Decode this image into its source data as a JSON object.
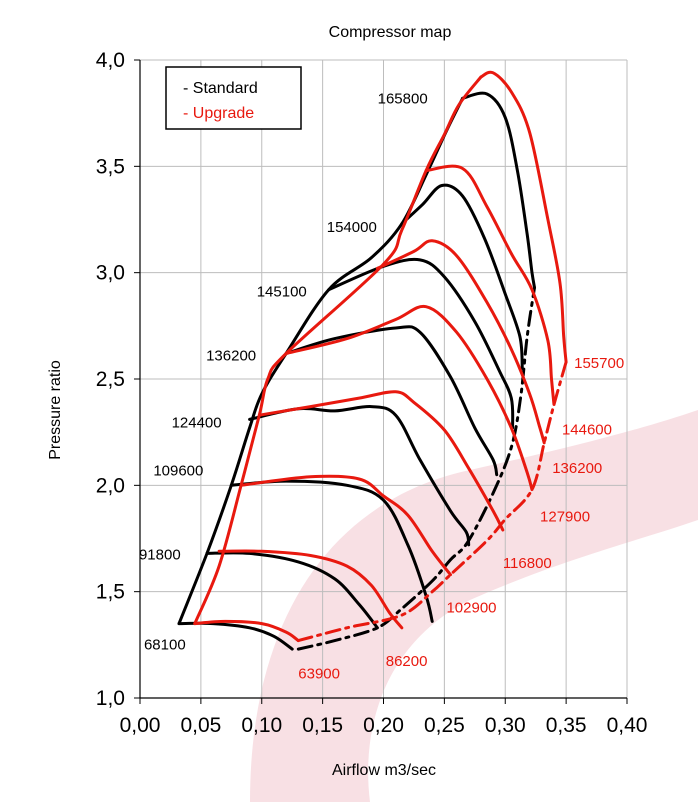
{
  "chart_data": {
    "type": "line",
    "title": "Compressor map",
    "xlabel": "Airflow m3/sec",
    "ylabel": "Pressure ratio",
    "xlim": [
      0,
      0.4
    ],
    "ylim": [
      1.0,
      4.0
    ],
    "x_ticks": [
      "0,00",
      "0,05",
      "0,10",
      "0,15",
      "0,20",
      "0,25",
      "0,30",
      "0,35",
      "0,40"
    ],
    "y_ticks": [
      "1,0",
      "1,5",
      "2,0",
      "2,5",
      "3,0",
      "3,5",
      "4,0"
    ],
    "grid": true,
    "legend": {
      "position": "top-left",
      "entries": [
        {
          "label": "- Standard",
          "color": "#000000"
        },
        {
          "label": "- Upgrade",
          "color": "#e8190f"
        }
      ]
    },
    "colors": {
      "standard": "#000000",
      "upgrade": "#e8190f",
      "grid": "#bdbdbd"
    },
    "series": [
      {
        "name": "Standard",
        "color": "#000000",
        "surge_line": [
          [
            0.032,
            1.35
          ],
          [
            0.055,
            1.68
          ],
          [
            0.075,
            2.0
          ],
          [
            0.09,
            2.27
          ],
          [
            0.1,
            2.43
          ],
          [
            0.12,
            2.62
          ],
          [
            0.155,
            2.92
          ],
          [
            0.19,
            3.07
          ],
          [
            0.215,
            3.23
          ],
          [
            0.235,
            3.46
          ],
          [
            0.252,
            3.67
          ],
          [
            0.265,
            3.82
          ]
        ],
        "speed_lines": [
          {
            "rpm": "68100",
            "points": [
              [
                0.032,
                1.35
              ],
              [
                0.06,
                1.35
              ],
              [
                0.09,
                1.33
              ],
              [
                0.11,
                1.29
              ],
              [
                0.125,
                1.23
              ]
            ]
          },
          {
            "rpm": "91800",
            "points": [
              [
                0.055,
                1.68
              ],
              [
                0.09,
                1.68
              ],
              [
                0.13,
                1.64
              ],
              [
                0.16,
                1.56
              ],
              [
                0.18,
                1.44
              ],
              [
                0.195,
                1.33
              ]
            ]
          },
          {
            "rpm": "109600",
            "points": [
              [
                0.075,
                2.0
              ],
              [
                0.12,
                2.02
              ],
              [
                0.17,
                2.0
              ],
              [
                0.2,
                1.93
              ],
              [
                0.22,
                1.72
              ],
              [
                0.235,
                1.48
              ],
              [
                0.24,
                1.36
              ]
            ]
          },
          {
            "rpm": "124400",
            "points": [
              [
                0.09,
                2.31
              ],
              [
                0.13,
                2.36
              ],
              [
                0.16,
                2.35
              ],
              [
                0.19,
                2.37
              ],
              [
                0.21,
                2.33
              ],
              [
                0.23,
                2.12
              ],
              [
                0.255,
                1.88
              ],
              [
                0.268,
                1.78
              ],
              [
                0.27,
                1.72
              ]
            ]
          },
          {
            "rpm": "136200",
            "points": [
              [
                0.12,
                2.62
              ],
              [
                0.16,
                2.69
              ],
              [
                0.21,
                2.74
              ],
              [
                0.23,
                2.72
              ],
              [
                0.255,
                2.51
              ],
              [
                0.275,
                2.27
              ],
              [
                0.29,
                2.12
              ],
              [
                0.293,
                2.05
              ]
            ]
          },
          {
            "rpm": "145100",
            "points": [
              [
                0.155,
                2.92
              ],
              [
                0.2,
                3.03
              ],
              [
                0.23,
                3.06
              ],
              [
                0.25,
                2.98
              ],
              [
                0.275,
                2.77
              ],
              [
                0.295,
                2.54
              ],
              [
                0.305,
                2.41
              ],
              [
                0.306,
                2.27
              ]
            ]
          },
          {
            "rpm": "154000",
            "points": [
              [
                0.215,
                3.23
              ],
              [
                0.232,
                3.32
              ],
              [
                0.248,
                3.41
              ],
              [
                0.265,
                3.36
              ],
              [
                0.283,
                3.16
              ],
              [
                0.3,
                2.9
              ],
              [
                0.312,
                2.7
              ],
              [
                0.314,
                2.55
              ]
            ]
          },
          {
            "rpm": "165800",
            "points": [
              [
                0.265,
                3.82
              ],
              [
                0.285,
                3.84
              ],
              [
                0.3,
                3.73
              ],
              [
                0.31,
                3.48
              ],
              [
                0.318,
                3.18
              ],
              [
                0.322,
                3.0
              ],
              [
                0.324,
                2.93
              ]
            ]
          }
        ],
        "choke_line": [
          [
            0.13,
            1.23
          ],
          [
            0.16,
            1.27
          ],
          [
            0.195,
            1.33
          ],
          [
            0.215,
            1.42
          ],
          [
            0.24,
            1.55
          ],
          [
            0.255,
            1.65
          ],
          [
            0.27,
            1.74
          ],
          [
            0.293,
            2.0
          ],
          [
            0.306,
            2.2
          ],
          [
            0.313,
            2.43
          ],
          [
            0.318,
            2.7
          ],
          [
            0.324,
            2.93
          ]
        ]
      },
      {
        "name": "Upgrade",
        "color": "#e8190f",
        "surge_line": [
          [
            0.045,
            1.35
          ],
          [
            0.065,
            1.62
          ],
          [
            0.083,
            2.0
          ],
          [
            0.098,
            2.33
          ],
          [
            0.105,
            2.5
          ],
          [
            0.12,
            2.62
          ],
          [
            0.2,
            3.04
          ],
          [
            0.215,
            3.2
          ],
          [
            0.235,
            3.48
          ],
          [
            0.25,
            3.65
          ],
          [
            0.262,
            3.79
          ],
          [
            0.28,
            3.92
          ]
        ],
        "speed_lines": [
          {
            "rpm": "63900",
            "points": [
              [
                0.045,
                1.35
              ],
              [
                0.07,
                1.36
              ],
              [
                0.1,
                1.35
              ],
              [
                0.12,
                1.31
              ],
              [
                0.13,
                1.27
              ]
            ]
          },
          {
            "rpm": "86200",
            "points": [
              [
                0.065,
                1.69
              ],
              [
                0.1,
                1.69
              ],
              [
                0.14,
                1.67
              ],
              [
                0.17,
                1.62
              ],
              [
                0.19,
                1.53
              ],
              [
                0.205,
                1.4
              ],
              [
                0.215,
                1.33
              ]
            ]
          },
          {
            "rpm": "102900",
            "points": [
              [
                0.083,
                2.0
              ],
              [
                0.14,
                2.04
              ],
              [
                0.18,
                2.03
              ],
              [
                0.2,
                1.95
              ],
              [
                0.22,
                1.86
              ],
              [
                0.24,
                1.69
              ],
              [
                0.255,
                1.58
              ]
            ]
          },
          {
            "rpm": "116800",
            "points": [
              [
                0.098,
                2.33
              ],
              [
                0.14,
                2.37
              ],
              [
                0.18,
                2.41
              ],
              [
                0.21,
                2.44
              ],
              [
                0.225,
                2.39
              ],
              [
                0.25,
                2.26
              ],
              [
                0.27,
                2.08
              ],
              [
                0.29,
                1.88
              ],
              [
                0.298,
                1.79
              ]
            ]
          },
          {
            "rpm": "127900",
            "points": [
              [
                0.12,
                2.62
              ],
              [
                0.17,
                2.69
              ],
              [
                0.21,
                2.78
              ],
              [
                0.235,
                2.84
              ],
              [
                0.26,
                2.72
              ],
              [
                0.285,
                2.5
              ],
              [
                0.305,
                2.27
              ],
              [
                0.318,
                2.06
              ],
              [
                0.322,
                1.98
              ]
            ]
          },
          {
            "rpm": "136200",
            "points": [
              [
                0.195,
                3.02
              ],
              [
                0.225,
                3.1
              ],
              [
                0.24,
                3.15
              ],
              [
                0.26,
                3.08
              ],
              [
                0.285,
                2.86
              ],
              [
                0.305,
                2.64
              ],
              [
                0.32,
                2.43
              ],
              [
                0.328,
                2.28
              ],
              [
                0.332,
                2.2
              ]
            ]
          },
          {
            "rpm": "144600",
            "points": [
              [
                0.235,
                3.48
              ],
              [
                0.265,
                3.49
              ],
              [
                0.285,
                3.31
              ],
              [
                0.305,
                3.09
              ],
              [
                0.322,
                2.92
              ],
              [
                0.335,
                2.68
              ],
              [
                0.338,
                2.5
              ],
              [
                0.34,
                2.38
              ]
            ]
          },
          {
            "rpm": "155700",
            "points": [
              [
                0.28,
                3.92
              ],
              [
                0.29,
                3.94
              ],
              [
                0.305,
                3.85
              ],
              [
                0.32,
                3.66
              ],
              [
                0.335,
                3.25
              ],
              [
                0.345,
                2.95
              ],
              [
                0.348,
                2.7
              ],
              [
                0.35,
                2.58
              ]
            ]
          }
        ],
        "choke_line": [
          [
            0.13,
            1.27
          ],
          [
            0.17,
            1.33
          ],
          [
            0.215,
            1.39
          ],
          [
            0.24,
            1.5
          ],
          [
            0.255,
            1.58
          ],
          [
            0.285,
            1.74
          ],
          [
            0.3,
            1.84
          ],
          [
            0.322,
            1.98
          ],
          [
            0.332,
            2.2
          ],
          [
            0.34,
            2.38
          ],
          [
            0.35,
            2.58
          ]
        ]
      }
    ],
    "annotations": [
      {
        "series": "Standard",
        "text": "165800",
        "x": 0.265,
        "y": 3.82
      },
      {
        "series": "Standard",
        "text": "154000",
        "x": 0.215,
        "y": 3.23
      },
      {
        "series": "Standard",
        "text": "145100",
        "x": 0.155,
        "y": 2.92
      },
      {
        "series": "Standard",
        "text": "136200",
        "x": 0.12,
        "y": 2.62
      },
      {
        "series": "Standard",
        "text": "124400",
        "x": 0.09,
        "y": 2.31
      },
      {
        "series": "Standard",
        "text": "109600",
        "x": 0.075,
        "y": 2.0
      },
      {
        "series": "Standard",
        "text": "91800",
        "x": 0.055,
        "y": 1.68
      },
      {
        "series": "Standard",
        "text": "68100",
        "x": 0.032,
        "y": 1.35
      },
      {
        "series": "Upgrade",
        "text": "155700",
        "x": 0.35,
        "y": 2.58
      },
      {
        "series": "Upgrade",
        "text": "144600",
        "x": 0.34,
        "y": 2.38
      },
      {
        "series": "Upgrade",
        "text": "136200",
        "x": 0.332,
        "y": 2.2
      },
      {
        "series": "Upgrade",
        "text": "127900",
        "x": 0.322,
        "y": 1.98
      },
      {
        "series": "Upgrade",
        "text": "116800",
        "x": 0.298,
        "y": 1.79
      },
      {
        "series": "Upgrade",
        "text": "102900",
        "x": 0.255,
        "y": 1.58
      },
      {
        "series": "Upgrade",
        "text": "86200",
        "x": 0.215,
        "y": 1.33
      },
      {
        "series": "Upgrade",
        "text": "63900",
        "x": 0.13,
        "y": 1.27
      }
    ]
  }
}
